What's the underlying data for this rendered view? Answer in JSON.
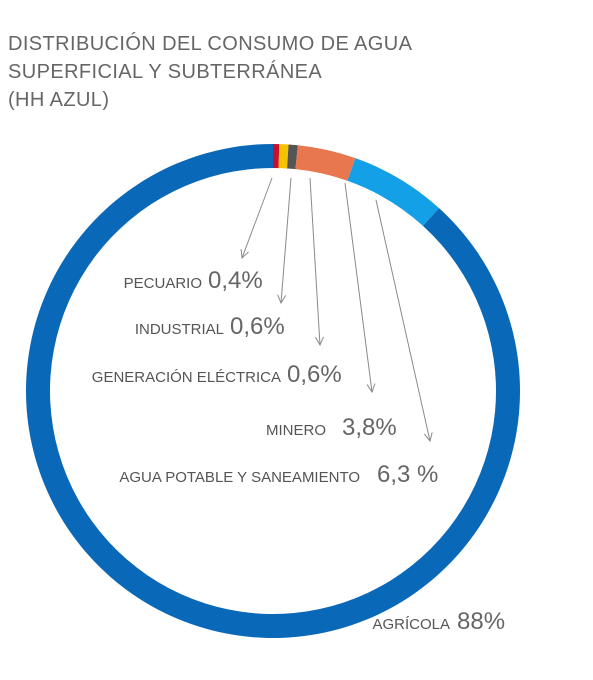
{
  "title": {
    "lines": [
      "DISTRIBUCIÓN DEL CONSUMO DE AGUA",
      "SUPERFICIAL Y SUBTERRÁNEA",
      "(HH AZUL)"
    ]
  },
  "chart_data": {
    "type": "pie",
    "variant": "donut",
    "title": "DISTRIBUCIÓN DEL CONSUMO DE AGUA SUPERFICIAL Y SUBTERRÁNEA (HH AZUL)",
    "legend": "none",
    "slices": [
      {
        "label": "PECUARIO",
        "value": 0.4,
        "display": "0,4%",
        "color": "#c8102e"
      },
      {
        "label": "INDUSTRIAL",
        "value": 0.6,
        "display": "0,6%",
        "color": "#f5c400"
      },
      {
        "label": "GENERACIÓN ELÉCTRICA",
        "value": 0.6,
        "display": "0,6%",
        "color": "#555555"
      },
      {
        "label": "MINERO",
        "value": 3.8,
        "display": "3,8%",
        "color": "#e8774f"
      },
      {
        "label": "AGUA POTABLE Y SANEAMIENTO",
        "value": 6.3,
        "display": "6,3 %",
        "color": "#14a0e6"
      },
      {
        "label": "AGRÍCOLA",
        "value": 88,
        "display": "88%",
        "color": "#0a68b8"
      }
    ]
  }
}
